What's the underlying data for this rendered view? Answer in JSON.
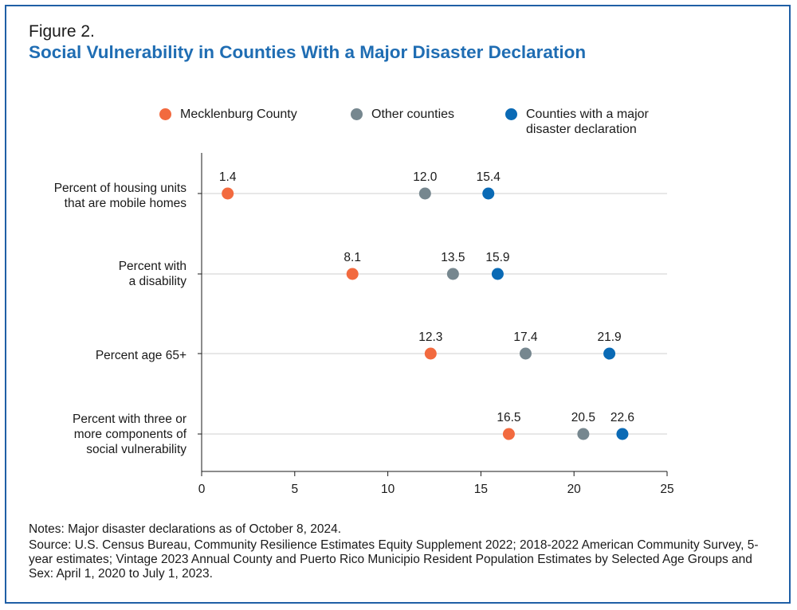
{
  "figure_label": "Figure 2.",
  "title": "Social Vulnerability in Counties With a Major Disaster Declaration",
  "legend": [
    {
      "label": "Mecklenburg County",
      "color": "#f26a3f"
    },
    {
      "label": "Other counties",
      "color": "#76878f"
    },
    {
      "label": "Counties with a major\ndisaster declaration",
      "color": "#0a6ab5"
    }
  ],
  "chart_data": {
    "type": "scatter",
    "orientation": "horizontal-dot-plot",
    "categories": [
      "Percent of housing units\nthat are mobile homes",
      "Percent with\na disability",
      "Percent age 65+",
      "Percent with three or\nmore components of\nsocial vulnerability"
    ],
    "series": [
      {
        "name": "Mecklenburg County",
        "color": "#f26a3f",
        "values": [
          1.4,
          8.1,
          12.3,
          16.5
        ]
      },
      {
        "name": "Other counties",
        "color": "#76878f",
        "values": [
          12.0,
          13.5,
          17.4,
          20.5
        ]
      },
      {
        "name": "Counties with a major disaster declaration",
        "color": "#0a6ab5",
        "values": [
          15.4,
          15.9,
          21.9,
          22.6
        ]
      }
    ],
    "value_labels": [
      [
        "1.4",
        "12.0",
        "15.4"
      ],
      [
        "8.1",
        "13.5",
        "15.9"
      ],
      [
        "12.3",
        "17.4",
        "21.9"
      ],
      [
        "16.5",
        "20.5",
        "22.6"
      ]
    ],
    "xlim": [
      0,
      25
    ],
    "xticks": [
      0,
      5,
      10,
      15,
      20,
      25
    ],
    "xlabel": "",
    "ylabel": "",
    "grid": "horizontal row lines",
    "legend_position": "top"
  },
  "notes": {
    "note": "Notes: Major disaster declarations as of October 8, 2024.",
    "source": "Source: U.S. Census Bureau, Community Resilience Estimates Equity Supplement 2022; 2018-2022 American Community Survey, 5-year estimates; Vintage 2023 Annual County and Puerto Rico Municipio Resident Population Estimates by Selected Age Groups and Sex: April 1, 2020 to July 1, 2023."
  }
}
